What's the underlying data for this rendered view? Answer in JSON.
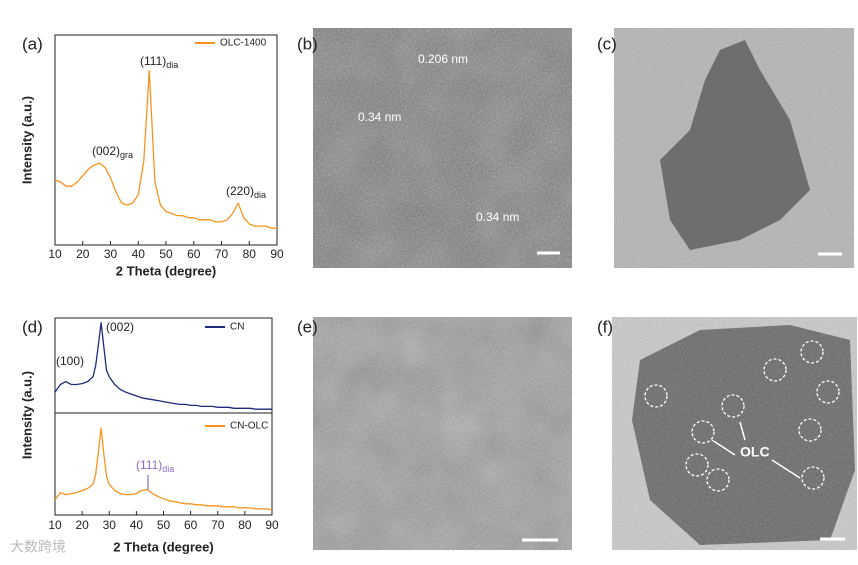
{
  "chart_data": [
    {
      "type": "line",
      "label": "(a)",
      "xlabel": "2 Theta (degree)",
      "ylabel": "Intensity (a.u.)",
      "xlim": [
        10,
        90
      ],
      "ylim": [
        0,
        100
      ],
      "xticks": [
        10,
        20,
        30,
        40,
        50,
        60,
        70,
        80,
        90
      ],
      "x": [
        10,
        12,
        14,
        16,
        18,
        20,
        22,
        24,
        26,
        28,
        30,
        32,
        34,
        36,
        38,
        40,
        42,
        44,
        46,
        48,
        50,
        52,
        54,
        56,
        58,
        60,
        62,
        64,
        66,
        68,
        70,
        72,
        74,
        76,
        78,
        80,
        82,
        84,
        86,
        88,
        90
      ],
      "series": [
        {
          "name": "OLC-1400",
          "color": "#f7941d",
          "values": [
            31,
            30,
            28,
            28,
            30,
            33,
            36,
            38,
            39,
            37,
            32,
            25,
            20,
            19,
            20,
            24,
            40,
            83,
            30,
            19,
            16,
            15,
            14,
            14,
            13,
            13,
            12,
            12,
            12,
            11,
            11,
            12,
            15,
            20,
            13,
            10,
            9,
            9,
            9,
            8,
            8
          ]
        }
      ],
      "annotations": [
        {
          "text": "(002)",
          "sub": "gra"
        },
        {
          "text": "(111)",
          "sub": "dia"
        },
        {
          "text": "(220)",
          "sub": "dia"
        }
      ]
    },
    {
      "type": "line",
      "label": "(d)",
      "xlim": [
        10,
        90
      ],
      "ylim": [
        0,
        100
      ],
      "x": [
        10,
        12,
        14,
        16,
        18,
        20,
        22,
        24,
        25,
        26,
        27,
        28,
        29,
        30,
        32,
        34,
        36,
        38,
        40,
        42,
        44,
        46,
        48,
        50,
        52,
        54,
        56,
        58,
        60,
        62,
        64,
        66,
        68,
        70,
        72,
        74,
        76,
        78,
        80,
        82,
        84,
        86,
        88,
        90
      ],
      "series": [
        {
          "name": "CN",
          "color": "#1f2a7a",
          "values": [
            22,
            30,
            33,
            30,
            30,
            31,
            33,
            38,
            50,
            72,
            95,
            70,
            45,
            38,
            30,
            25,
            22,
            20,
            18,
            16,
            15,
            14,
            13,
            12,
            11,
            10,
            9,
            9,
            8,
            8,
            7,
            7,
            7,
            6,
            6,
            6,
            5,
            5,
            5,
            5,
            4,
            4,
            4,
            4
          ]
        }
      ],
      "annotations": [
        {
          "text": "(100)"
        },
        {
          "text": "(002)"
        }
      ]
    },
    {
      "type": "line",
      "xlabel": "2 Theta (degree)",
      "ylabel": "Intensity (a.u.)",
      "xlim": [
        10,
        90
      ],
      "ylim": [
        0,
        100
      ],
      "xticks": [
        10,
        20,
        30,
        40,
        50,
        60,
        70,
        80,
        90
      ],
      "x": [
        10,
        12,
        14,
        16,
        18,
        20,
        22,
        24,
        25,
        26,
        27,
        28,
        29,
        30,
        32,
        34,
        36,
        38,
        40,
        42,
        44,
        46,
        48,
        50,
        52,
        54,
        56,
        58,
        60,
        62,
        64,
        66,
        68,
        70,
        72,
        74,
        76,
        78,
        80,
        82,
        84,
        86,
        88,
        90
      ],
      "series": [
        {
          "name": "CN-OLC",
          "color": "#f7941d",
          "values": [
            15,
            22,
            20,
            21,
            22,
            24,
            26,
            30,
            40,
            62,
            85,
            60,
            38,
            30,
            24,
            21,
            20,
            20,
            21,
            24,
            25,
            21,
            18,
            16,
            14,
            13,
            12,
            11,
            11,
            10,
            10,
            9,
            9,
            9,
            8,
            8,
            8,
            7,
            7,
            7,
            6,
            6,
            6,
            5
          ]
        }
      ],
      "annotations": [
        {
          "text": "(111)",
          "sub": "dia",
          "color": "#8e6bbf"
        }
      ]
    }
  ],
  "images": [
    {
      "label": "(b)",
      "annotations": [
        "0.206 nm",
        "0.34 nm",
        "0.34 nm"
      ]
    },
    {
      "label": "(c)",
      "annotations": []
    },
    {
      "label": "(e)",
      "annotations": []
    },
    {
      "label": "(f)",
      "annotations": [
        "OLC"
      ]
    }
  ],
  "watermark": "大数跨境"
}
